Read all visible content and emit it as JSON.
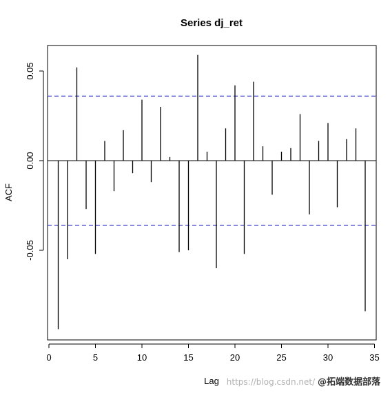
{
  "chart_data": {
    "type": "bar",
    "title": "Series dj_ret",
    "xlabel": "Lag",
    "ylabel": "ACF",
    "xlim": [
      0,
      35
    ],
    "ylim": [
      -0.1,
      0.065
    ],
    "x_ticks": [
      0,
      5,
      10,
      15,
      20,
      25,
      30,
      35
    ],
    "x_tick_labels": [
      "0",
      "5",
      "10",
      "15",
      "20",
      "25",
      "30",
      "35"
    ],
    "y_ticks": [
      -0.05,
      0.0,
      0.05
    ],
    "y_tick_labels": [
      "-0.05",
      "0.00",
      "0.05"
    ],
    "confidence_bound": 0.036,
    "confidence_color": "#3333cc",
    "bar_color": "#000000",
    "lags": [
      1,
      2,
      3,
      4,
      5,
      6,
      7,
      8,
      9,
      10,
      11,
      12,
      13,
      14,
      15,
      16,
      17,
      18,
      19,
      20,
      21,
      22,
      23,
      24,
      25,
      26,
      27,
      28,
      29,
      30,
      31,
      32,
      33,
      34
    ],
    "values": [
      -0.094,
      -0.055,
      0.052,
      -0.027,
      -0.052,
      0.011,
      -0.017,
      0.017,
      -0.007,
      0.034,
      -0.012,
      0.03,
      0.002,
      -0.051,
      -0.05,
      0.059,
      0.005,
      -0.06,
      0.018,
      0.042,
      -0.052,
      0.044,
      0.008,
      -0.019,
      0.005,
      0.007,
      0.026,
      -0.03,
      0.011,
      0.021,
      -0.026,
      0.012,
      0.018,
      -0.084
    ]
  },
  "watermark": {
    "url_text": "https://blog.csdn.net/",
    "brand_text": "@拓端数据部落"
  }
}
